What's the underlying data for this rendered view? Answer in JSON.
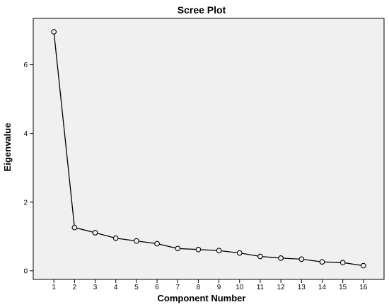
{
  "chart_data": {
    "type": "line",
    "title": "Scree Plot",
    "xlabel": "Component Number",
    "ylabel": "Eigenvalue",
    "x": [
      1,
      2,
      3,
      4,
      5,
      6,
      7,
      8,
      9,
      10,
      11,
      12,
      13,
      14,
      15,
      16
    ],
    "series": [
      {
        "values": [
          6.96,
          1.26,
          1.11,
          0.95,
          0.87,
          0.79,
          0.65,
          0.62,
          0.59,
          0.52,
          0.42,
          0.37,
          0.34,
          0.26,
          0.24,
          0.15
        ]
      }
    ],
    "xticks": [
      "1",
      "2",
      "3",
      "4",
      "5",
      "6",
      "7",
      "8",
      "9",
      "10",
      "11",
      "12",
      "13",
      "14",
      "15",
      "16"
    ],
    "yticks": [
      0,
      2,
      4,
      6
    ],
    "ylim": [
      -0.25,
      7.35
    ],
    "xlim": [
      0,
      17
    ],
    "grid": false,
    "colors": {
      "plot_background": "#f0f0f0",
      "line": "#000000",
      "marker_fill": "#f0f0f0"
    }
  }
}
